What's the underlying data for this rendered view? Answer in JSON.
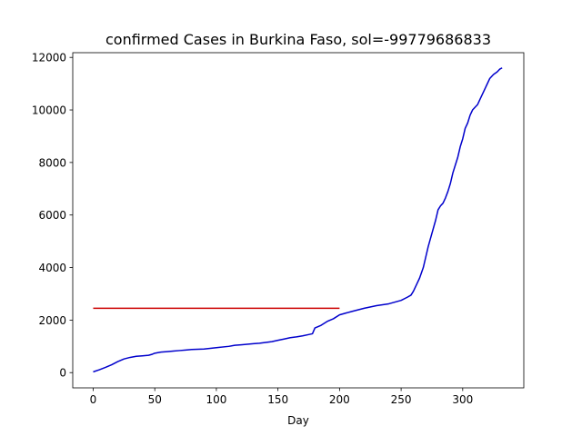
{
  "chart_data": {
    "type": "line",
    "title": "confirmed Cases in Burkina Faso, sol=-99779686833",
    "xlabel": "Day",
    "ylabel": "",
    "xlim": [
      -16.6,
      349.6
    ],
    "ylim": [
      -580,
      12180
    ],
    "x_ticks": [
      0,
      50,
      100,
      150,
      200,
      250,
      300
    ],
    "y_ticks": [
      0,
      2000,
      4000,
      6000,
      8000,
      10000,
      12000
    ],
    "grid": false,
    "series": [
      {
        "color": "#0000cc",
        "x": [
          0,
          5,
          10,
          15,
          20,
          25,
          30,
          35,
          40,
          45,
          48,
          50,
          55,
          60,
          65,
          70,
          75,
          80,
          90,
          100,
          110,
          115,
          120,
          130,
          135,
          140,
          145,
          150,
          155,
          160,
          165,
          170,
          175,
          178,
          180,
          185,
          190,
          195,
          200,
          210,
          220,
          230,
          240,
          250,
          255,
          258,
          260,
          262,
          265,
          268,
          270,
          272,
          275,
          278,
          280,
          282,
          284,
          286,
          288,
          290,
          292,
          294,
          296,
          298,
          300,
          302,
          304,
          306,
          308,
          310,
          312,
          315,
          318,
          320,
          322,
          325,
          328,
          330,
          332
        ],
        "y": [
          30,
          110,
          200,
          300,
          420,
          520,
          580,
          620,
          640,
          660,
          700,
          740,
          780,
          800,
          820,
          840,
          860,
          880,
          900,
          950,
          1000,
          1040,
          1060,
          1100,
          1120,
          1150,
          1180,
          1230,
          1280,
          1330,
          1360,
          1400,
          1450,
          1480,
          1700,
          1800,
          1950,
          2050,
          2200,
          2330,
          2450,
          2550,
          2620,
          2750,
          2870,
          2950,
          3100,
          3300,
          3600,
          4000,
          4400,
          4800,
          5300,
          5800,
          6200,
          6350,
          6450,
          6650,
          6900,
          7200,
          7600,
          7900,
          8200,
          8600,
          8900,
          9300,
          9500,
          9800,
          10000,
          10100,
          10200,
          10500,
          10800,
          11000,
          11200,
          11350,
          11450,
          11550,
          11600
        ]
      },
      {
        "color": "#cc0000",
        "x": [
          0,
          200
        ],
        "y": [
          2450,
          2450
        ]
      }
    ]
  }
}
